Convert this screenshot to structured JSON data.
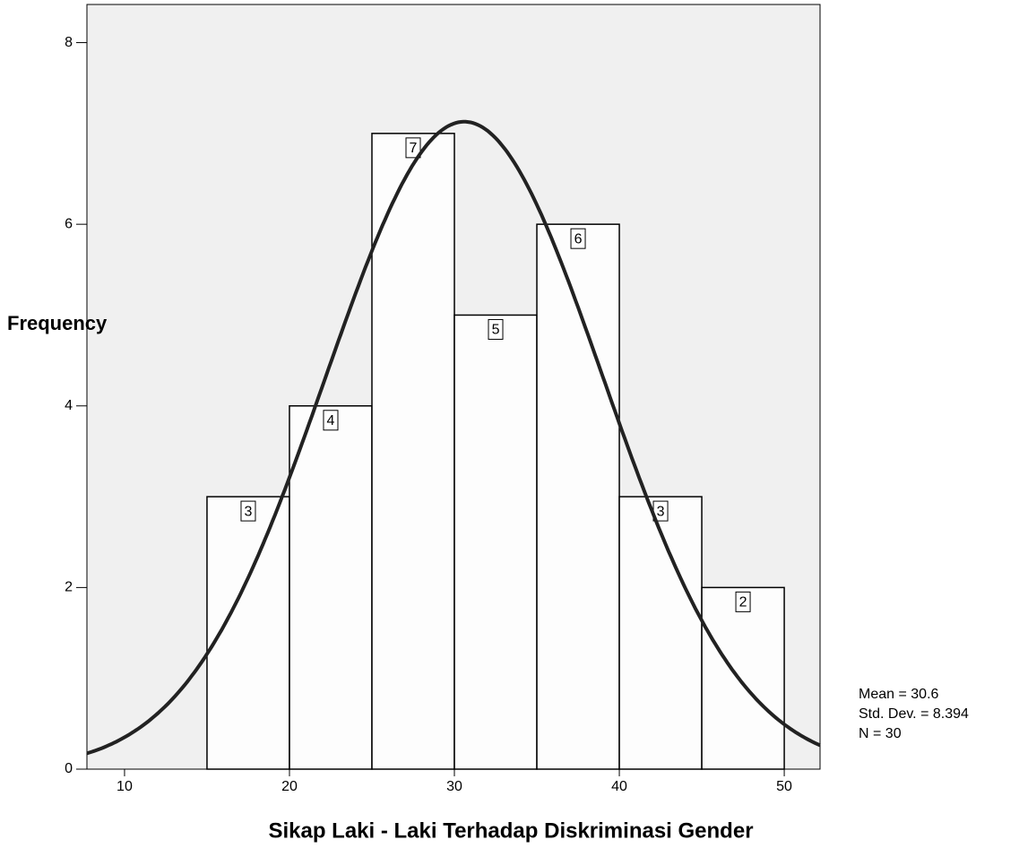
{
  "chart_data": {
    "type": "histogram",
    "xlabel": "Sikap Laki - Laki Terhadap Diskriminasi Gender",
    "ylabel": "Frequency",
    "bins": [
      15,
      20,
      25,
      30,
      35,
      40,
      45,
      50
    ],
    "values": [
      3,
      4,
      7,
      5,
      6,
      3,
      2
    ],
    "color": "#ffffff",
    "curve_color": "#222222",
    "xlim": [
      7.72,
      52.17
    ],
    "xticks": [
      10,
      20,
      30,
      40,
      50
    ],
    "ylim": [
      0,
      8.42
    ],
    "yticks": [
      0,
      2,
      4,
      6,
      8
    ],
    "stats": [
      {
        "label": "Mean =",
        "value": 30.6
      },
      {
        "label": "Std. Dev. =",
        "value": 8.394
      },
      {
        "label": "N =",
        "value": 30
      }
    ]
  }
}
